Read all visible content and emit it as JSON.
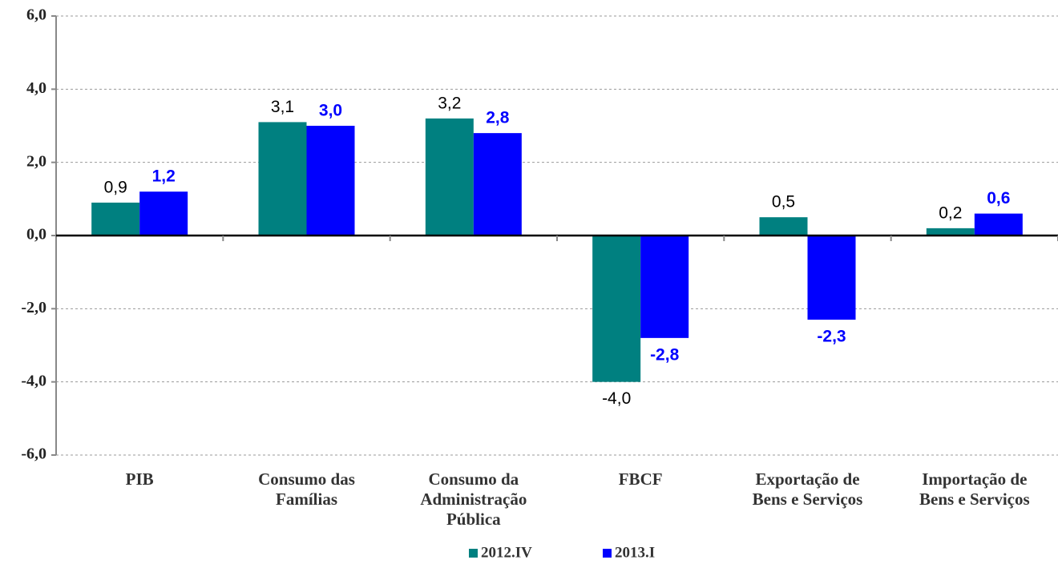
{
  "chart_data": {
    "type": "bar",
    "categories": [
      "PIB",
      "Consumo das\nFamílias",
      "Consumo da\nAdministração\nPública",
      "FBCF",
      "Exportação de\nBens e Serviços",
      "Importação de\nBens e Serviços"
    ],
    "series": [
      {
        "name": "2012.IV",
        "color": "#008080",
        "values": [
          0.9,
          3.1,
          3.2,
          -4.0,
          0.5,
          0.2
        ],
        "value_labels": [
          "0,9",
          "3,1",
          "3,2",
          "-4,0",
          "0,5",
          "0,2"
        ]
      },
      {
        "name": "2013.I",
        "color": "#0000ff",
        "values": [
          1.2,
          3.0,
          2.8,
          -2.8,
          -2.3,
          0.6
        ],
        "value_labels": [
          "1,2",
          "3,0",
          "2,8",
          "-2,8",
          "-2,3",
          "0,6"
        ]
      }
    ],
    "ylim": [
      -6,
      6
    ],
    "yticks": [
      {
        "value": -6,
        "label": "-6,0"
      },
      {
        "value": -4,
        "label": "-4,0"
      },
      {
        "value": -2,
        "label": "-2,0"
      },
      {
        "value": 0,
        "label": "0,0"
      },
      {
        "value": 2,
        "label": "2,0"
      },
      {
        "value": 4,
        "label": "4,0"
      },
      {
        "value": 6,
        "label": "6,0"
      }
    ],
    "grid": true,
    "legend": "bottom"
  }
}
